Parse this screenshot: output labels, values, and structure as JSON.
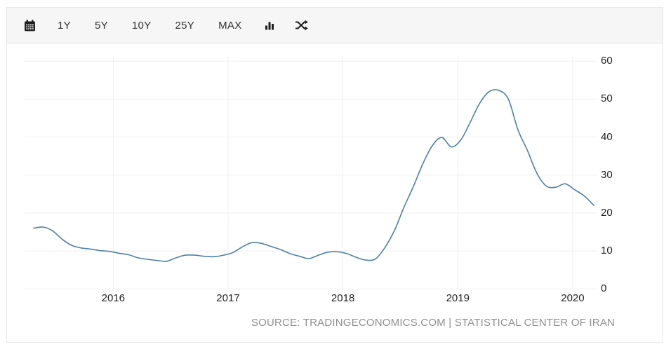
{
  "toolbar": {
    "calendar_icon": "calendar-icon",
    "buttons": [
      "1Y",
      "5Y",
      "10Y",
      "25Y",
      "MAX"
    ],
    "chart_type_icon": "bar-chart-icon",
    "compare_icon": "shuffle-icon"
  },
  "chart_data": {
    "type": "line",
    "title": "",
    "xlabel": "",
    "ylabel": "",
    "ylim": [
      0,
      60
    ],
    "y_ticks": [
      60,
      50,
      40,
      30,
      20,
      10,
      0
    ],
    "x_ticks": [
      "2016",
      "2017",
      "2018",
      "2019",
      "2020"
    ],
    "grid": true,
    "legend_position": "none",
    "line_color": "#4d80a8",
    "x": [
      "2015-04",
      "2015-05",
      "2015-06",
      "2015-07",
      "2015-08",
      "2015-09",
      "2015-10",
      "2015-11",
      "2015-12",
      "2016-01",
      "2016-02",
      "2016-03",
      "2016-04",
      "2016-05",
      "2016-06",
      "2016-07",
      "2016-08",
      "2016-09",
      "2016-10",
      "2016-11",
      "2016-12",
      "2017-01",
      "2017-02",
      "2017-03",
      "2017-04",
      "2017-05",
      "2017-06",
      "2017-07",
      "2017-08",
      "2017-09",
      "2017-10",
      "2017-11",
      "2017-12",
      "2018-01",
      "2018-02",
      "2018-03",
      "2018-04",
      "2018-05",
      "2018-06",
      "2018-07",
      "2018-08",
      "2018-09",
      "2018-10",
      "2018-11",
      "2018-12",
      "2019-01",
      "2019-02",
      "2019-03",
      "2019-04",
      "2019-05",
      "2019-06",
      "2019-07",
      "2019-08",
      "2019-09",
      "2019-10",
      "2019-11",
      "2019-12",
      "2020-01",
      "2020-02",
      "2020-03"
    ],
    "values": [
      16.0,
      16.3,
      15.3,
      13.1,
      11.5,
      10.8,
      10.5,
      10.1,
      9.9,
      9.4,
      9.0,
      8.2,
      7.8,
      7.5,
      7.3,
      8.2,
      8.9,
      8.9,
      8.6,
      8.5,
      8.9,
      9.6,
      11.1,
      12.2,
      12.0,
      11.2,
      10.4,
      9.3,
      8.6,
      8.0,
      8.9,
      9.7,
      9.8,
      9.3,
      8.3,
      7.6,
      7.9,
      10.9,
      15.4,
      21.5,
      27.0,
      33.0,
      37.8,
      39.9,
      37.4,
      39.3,
      44.0,
      49.0,
      52.0,
      52.3,
      50.0,
      42.0,
      36.5,
      30.5,
      27.1,
      26.8,
      27.7,
      26.1,
      24.5,
      22.0
    ]
  },
  "footer": {
    "source_text": "SOURCE: TRADINGECONOMICS.COM | STATISTICAL CENTER OF IRAN"
  }
}
